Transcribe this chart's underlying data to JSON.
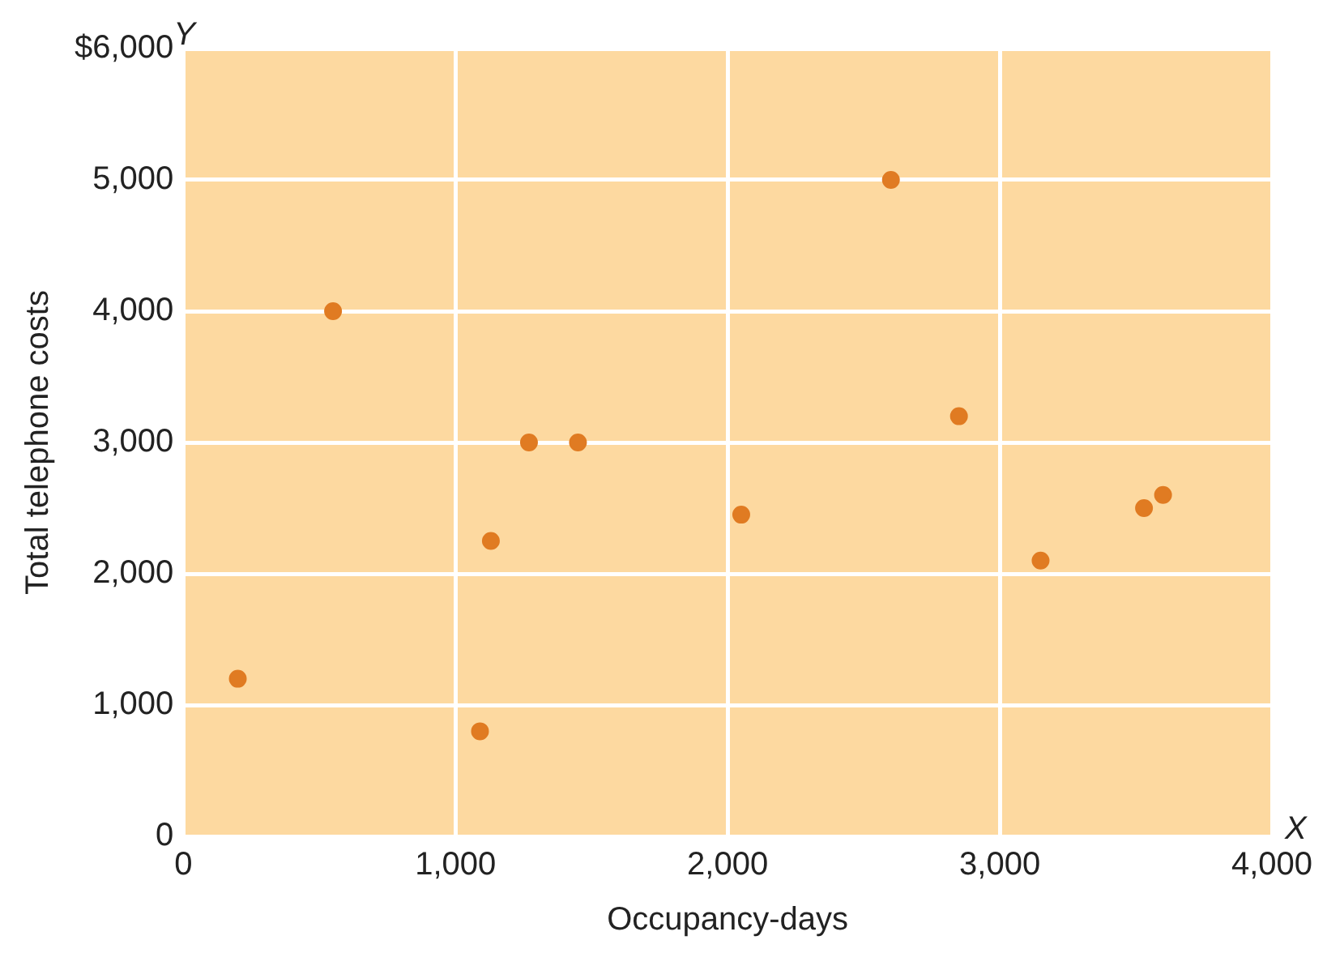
{
  "chart_data": {
    "type": "scatter",
    "xlabel": "Occupancy-days",
    "ylabel": "Total telephone costs",
    "x": [
      200,
      550,
      1090,
      1130,
      1270,
      1450,
      2050,
      2600,
      2850,
      3150,
      3530,
      3600
    ],
    "values": [
      1200,
      4000,
      800,
      2250,
      3000,
      3000,
      2450,
      5000,
      3200,
      2100,
      2500,
      2600
    ],
    "color": "#e07b22",
    "marker": "circle",
    "xlim": [
      0,
      4000
    ],
    "xticks": [
      0,
      {
        "value": 1000,
        "label": "1,000"
      },
      {
        "value": 2000,
        "label": "2,000"
      },
      {
        "value": 3000,
        "label": "3,000"
      },
      {
        "value": 4000,
        "label": "4,000"
      }
    ],
    "ylim": [
      0,
      6000
    ],
    "yticks": [
      0,
      {
        "value": 1000,
        "label": "1,000"
      },
      {
        "value": 2000,
        "label": "2,000"
      },
      {
        "value": 3000,
        "label": "3,000"
      },
      {
        "value": 4000,
        "label": "4,000"
      },
      {
        "value": 5000,
        "label": "5,000"
      },
      {
        "value": 6000,
        "label": "$6,000"
      }
    ],
    "grid": true,
    "legend": false,
    "annotations": [
      "Y",
      "X"
    ]
  }
}
